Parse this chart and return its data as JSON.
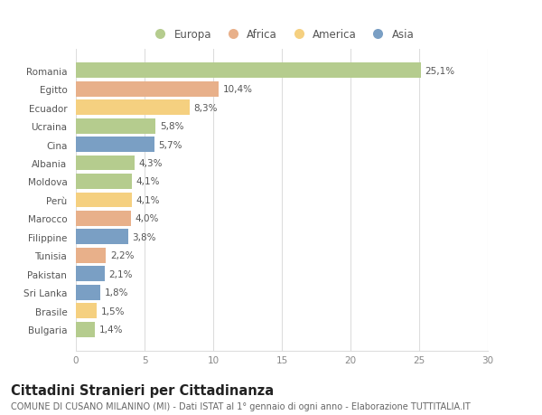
{
  "countries": [
    "Romania",
    "Egitto",
    "Ecuador",
    "Ucraina",
    "Cina",
    "Albania",
    "Moldova",
    "Perù",
    "Marocco",
    "Filippine",
    "Tunisia",
    "Pakistan",
    "Sri Lanka",
    "Brasile",
    "Bulgaria"
  ],
  "values": [
    25.1,
    10.4,
    8.3,
    5.8,
    5.7,
    4.3,
    4.1,
    4.1,
    4.0,
    3.8,
    2.2,
    2.1,
    1.8,
    1.5,
    1.4
  ],
  "labels": [
    "25,1%",
    "10,4%",
    "8,3%",
    "5,8%",
    "5,7%",
    "4,3%",
    "4,1%",
    "4,1%",
    "4,0%",
    "3,8%",
    "2,2%",
    "2,1%",
    "1,8%",
    "1,5%",
    "1,4%"
  ],
  "regions": [
    "Europa",
    "Africa",
    "America",
    "Europa",
    "Asia",
    "Europa",
    "Europa",
    "America",
    "Africa",
    "Asia",
    "Africa",
    "Asia",
    "Asia",
    "America",
    "Europa"
  ],
  "region_colors": {
    "Europa": "#b5cc8e",
    "Africa": "#e8b08a",
    "America": "#f5d080",
    "Asia": "#7a9fc4"
  },
  "legend_order": [
    "Europa",
    "Africa",
    "America",
    "Asia"
  ],
  "legend_colors": [
    "#b5cc8e",
    "#e8b08a",
    "#f5d080",
    "#7a9fc4"
  ],
  "title": "Cittadini Stranieri per Cittadinanza",
  "subtitle": "COMUNE DI CUSANO MILANINO (MI) - Dati ISTAT al 1° gennaio di ogni anno - Elaborazione TUTTITALIA.IT",
  "xlim": [
    0,
    30
  ],
  "xticks": [
    0,
    5,
    10,
    15,
    20,
    25,
    30
  ],
  "background_color": "#ffffff",
  "grid_color": "#dddddd",
  "bar_height": 0.82,
  "title_fontsize": 10.5,
  "subtitle_fontsize": 7.0,
  "label_fontsize": 7.5,
  "tick_fontsize": 7.5,
  "legend_fontsize": 8.5
}
